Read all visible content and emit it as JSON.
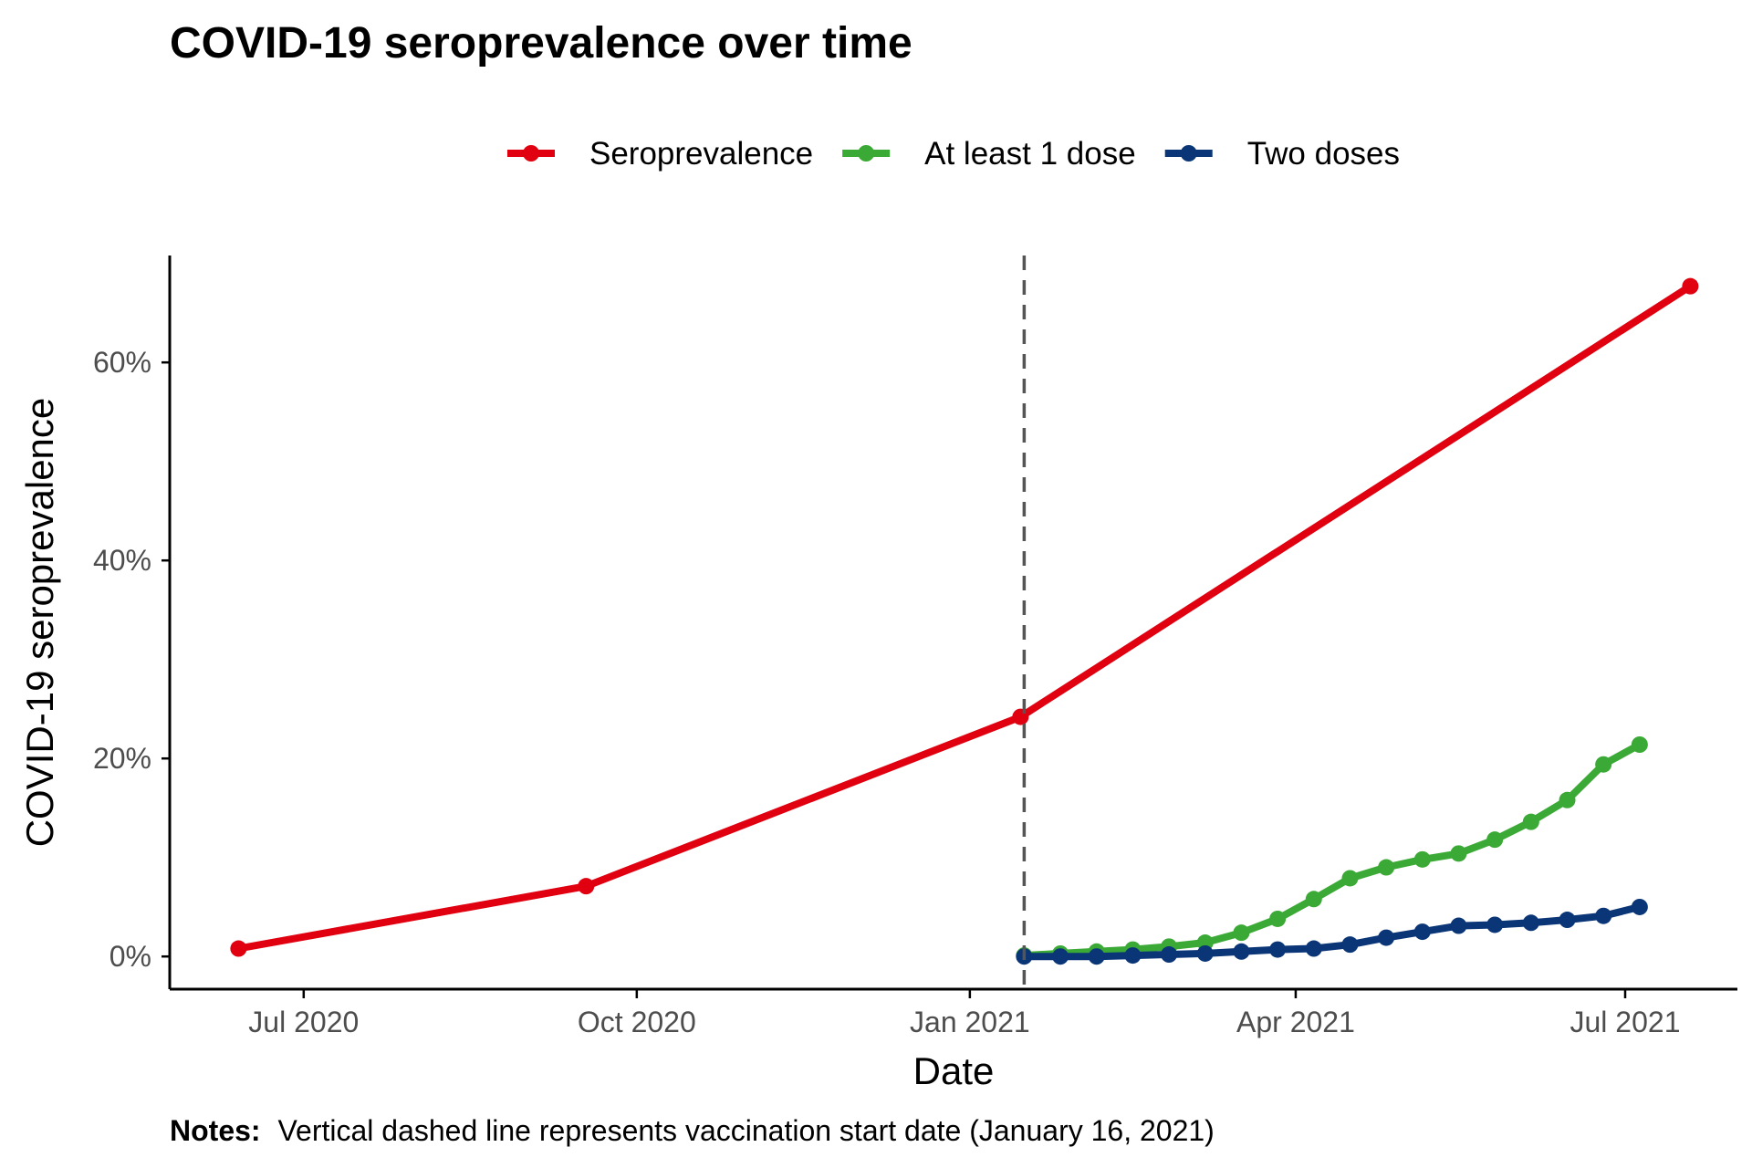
{
  "chart_data": {
    "type": "line",
    "title": "COVID-19 seroprevalence over time",
    "xlabel": "Date",
    "ylabel": "COVID-19 seroprevalence",
    "x_ticks": [
      {
        "date": "2020-07-01",
        "label": "Jul 2020"
      },
      {
        "date": "2020-10-01",
        "label": "Oct 2020"
      },
      {
        "date": "2021-01-01",
        "label": "Jan 2021"
      },
      {
        "date": "2021-04-01",
        "label": "Apr 2021"
      },
      {
        "date": "2021-07-01",
        "label": "Jul 2021"
      }
    ],
    "xlim": [
      "2020-05-25",
      "2021-08-01"
    ],
    "y_ticks": [
      {
        "value": 0,
        "label": "0%"
      },
      {
        "value": 20,
        "label": "20%"
      },
      {
        "value": 40,
        "label": "40%"
      },
      {
        "value": 60,
        "label": "60%"
      }
    ],
    "ylim": [
      -3.3,
      70.8
    ],
    "grid": false,
    "legend_position": "top",
    "vline": {
      "date": "2021-01-16",
      "style": "dashed",
      "color": "#555555"
    },
    "series": [
      {
        "name": "Seroprevalence",
        "color": "#e00010",
        "points": [
          {
            "x": "2020-06-13",
            "y": 0.8
          },
          {
            "x": "2020-09-17",
            "y": 7.1
          },
          {
            "x": "2021-01-15",
            "y": 24.2
          },
          {
            "x": "2021-07-19",
            "y": 67.7
          }
        ]
      },
      {
        "name": "At least 1 dose",
        "color": "#3aa935",
        "points": [
          {
            "x": "2021-01-16",
            "y": 0.1
          },
          {
            "x": "2021-01-26",
            "y": 0.3
          },
          {
            "x": "2021-02-05",
            "y": 0.5
          },
          {
            "x": "2021-02-15",
            "y": 0.7
          },
          {
            "x": "2021-02-25",
            "y": 1.0
          },
          {
            "x": "2021-03-07",
            "y": 1.4
          },
          {
            "x": "2021-03-17",
            "y": 2.4
          },
          {
            "x": "2021-03-27",
            "y": 3.8
          },
          {
            "x": "2021-04-06",
            "y": 5.8
          },
          {
            "x": "2021-04-16",
            "y": 7.9
          },
          {
            "x": "2021-04-26",
            "y": 9.0
          },
          {
            "x": "2021-05-06",
            "y": 9.8
          },
          {
            "x": "2021-05-16",
            "y": 10.4
          },
          {
            "x": "2021-05-26",
            "y": 11.8
          },
          {
            "x": "2021-06-05",
            "y": 13.6
          },
          {
            "x": "2021-06-15",
            "y": 15.8
          },
          {
            "x": "2021-06-25",
            "y": 19.4
          },
          {
            "x": "2021-07-05",
            "y": 21.4
          }
        ]
      },
      {
        "name": "Two doses",
        "color": "#0a3576",
        "points": [
          {
            "x": "2021-01-16",
            "y": 0.0
          },
          {
            "x": "2021-01-26",
            "y": 0.0
          },
          {
            "x": "2021-02-05",
            "y": 0.0
          },
          {
            "x": "2021-02-15",
            "y": 0.1
          },
          {
            "x": "2021-02-25",
            "y": 0.2
          },
          {
            "x": "2021-03-07",
            "y": 0.3
          },
          {
            "x": "2021-03-17",
            "y": 0.5
          },
          {
            "x": "2021-03-27",
            "y": 0.7
          },
          {
            "x": "2021-04-06",
            "y": 0.8
          },
          {
            "x": "2021-04-16",
            "y": 1.2
          },
          {
            "x": "2021-04-26",
            "y": 1.9
          },
          {
            "x": "2021-05-06",
            "y": 2.5
          },
          {
            "x": "2021-05-16",
            "y": 3.1
          },
          {
            "x": "2021-05-26",
            "y": 3.2
          },
          {
            "x": "2021-06-05",
            "y": 3.4
          },
          {
            "x": "2021-06-15",
            "y": 3.7
          },
          {
            "x": "2021-06-25",
            "y": 4.1
          },
          {
            "x": "2021-07-05",
            "y": 5.0
          }
        ]
      }
    ],
    "note": {
      "label": "Notes:",
      "text": "Vertical dashed line represents vaccination start date (January 16, 2021)"
    }
  }
}
